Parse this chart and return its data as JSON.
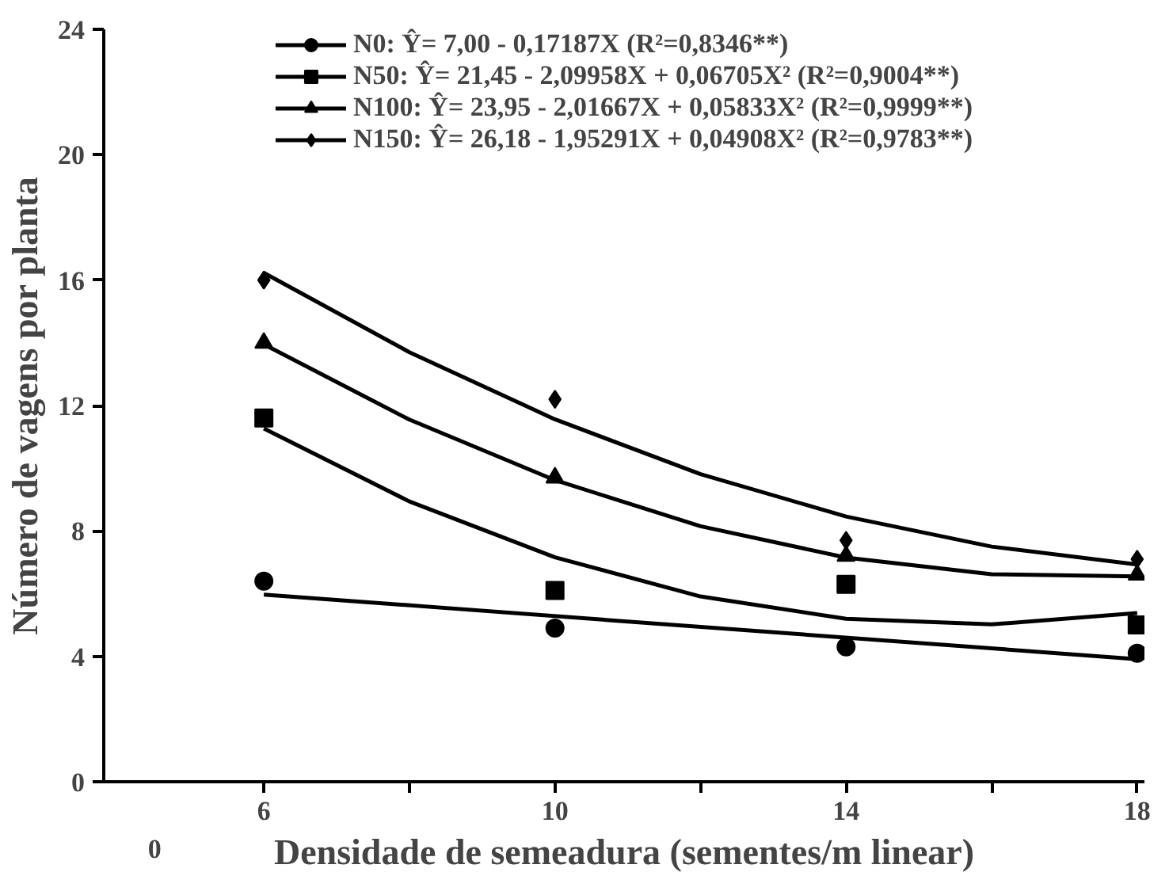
{
  "chart_data": {
    "type": "scatter",
    "xlabel": "Densidade de semeadura (sementes/m linear)",
    "ylabel": "Número de vagens por planta",
    "x": [
      6,
      10,
      14,
      18
    ],
    "xlim": [
      3.8,
      18.1
    ],
    "annotations": [
      "0"
    ],
    "xticks": [
      6,
      {
        "value": 8,
        "label": null
      },
      10,
      {
        "value": 12,
        "label": null
      },
      14,
      {
        "value": 16,
        "label": null
      },
      18
    ],
    "ylim": [
      0,
      24
    ],
    "yticks": [
      0,
      4,
      8,
      12,
      16,
      20,
      24
    ],
    "grid": false,
    "legend": "top",
    "series": [
      {
        "name": "N0: Ŷ= 7,00 - 0,17187X (R²=0,8346**)",
        "color": "#000000",
        "marker": "circle",
        "values": [
          6.4,
          4.9,
          4.3,
          4.1
        ]
      },
      {
        "type": "line",
        "color": "#000000",
        "x": [
          6,
          18
        ],
        "values": [
          5.97,
          3.91
        ]
      },
      {
        "name": "N50: Ŷ= 21,45 - 2,09958X + 0,06705X² (R²=0,9004**)",
        "color": "#000000",
        "marker": "square",
        "values": [
          11.6,
          6.1,
          6.3,
          5.0
        ]
      },
      {
        "type": "line",
        "color": "#000000",
        "x": [
          6,
          8,
          10,
          12,
          14,
          16,
          18
        ],
        "values": [
          11.27,
          8.94,
          7.16,
          5.91,
          5.2,
          5.02,
          5.38
        ]
      },
      {
        "name": "N100: Ŷ= 23,95 - 2,01667X + 0,05833X² (R²=0,9999**)",
        "color": "#000000",
        "marker": "triangle",
        "values": [
          14.0,
          9.7,
          7.2,
          6.6
        ]
      },
      {
        "type": "line",
        "color": "#000000",
        "x": [
          6,
          8,
          10,
          12,
          14,
          16,
          18
        ],
        "values": [
          13.95,
          11.55,
          9.62,
          8.15,
          7.15,
          6.62,
          6.55
        ]
      },
      {
        "name": "N150: Ŷ= 26,18 - 1,95291X + 0,04908X² (R²=0,9783**)",
        "color": "#000000",
        "marker": "diamond",
        "values": [
          16.0,
          12.2,
          7.7,
          7.1
        ]
      },
      {
        "type": "line",
        "color": "#000000",
        "x": [
          6,
          8,
          10,
          12,
          14,
          16,
          18
        ],
        "values": [
          16.23,
          13.7,
          11.56,
          9.81,
          8.46,
          7.5,
          6.93
        ]
      }
    ]
  }
}
